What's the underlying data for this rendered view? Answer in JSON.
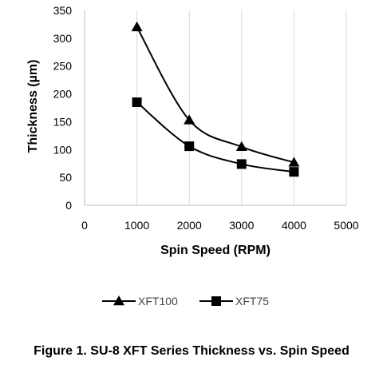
{
  "chart_data": {
    "type": "scatter",
    "title": "",
    "xlabel": "Spin Speed (RPM)",
    "ylabel": "Thickness (µm)",
    "xlim": [
      0,
      5000
    ],
    "ylim": [
      0,
      350
    ],
    "x_ticks": [
      "0",
      "1000",
      "2000",
      "3000",
      "4000",
      "5000"
    ],
    "y_ticks": [
      "0",
      "50",
      "100",
      "150",
      "200",
      "250",
      "300",
      "350"
    ],
    "grid": "vertical",
    "legend_position": "bottom",
    "series": [
      {
        "name": "XFT100",
        "marker": "triangle",
        "color": "#000000",
        "smooth": true,
        "x": [
          1000,
          2000,
          3000,
          4000
        ],
        "y": [
          320,
          153,
          105,
          77
        ]
      },
      {
        "name": "XFT75",
        "marker": "square",
        "color": "#000000",
        "smooth": true,
        "x": [
          1000,
          2000,
          3000,
          4000
        ],
        "y": [
          185,
          106,
          74,
          60
        ]
      }
    ]
  },
  "caption": "Figure 1. SU-8 XFT Series Thickness vs. Spin Speed"
}
